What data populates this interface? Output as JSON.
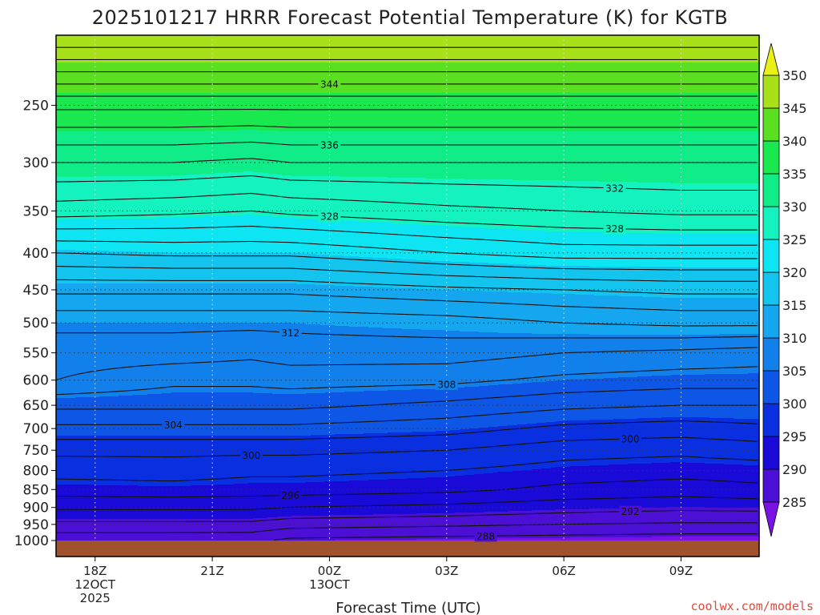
{
  "chart_data": {
    "type": "heatmap",
    "title": "2025101217 HRRR Forecast Potential Temperature (K) for KGTB",
    "xlabel": "Forecast Time (UTC)",
    "ylabel": "",
    "credit": "coolwx.com/models",
    "x_ticks": [
      {
        "hour": 0,
        "lines": [
          "18Z",
          "12OCT",
          "2025"
        ]
      },
      {
        "hour": 3,
        "lines": [
          "21Z"
        ]
      },
      {
        "hour": 6,
        "lines": [
          "00Z",
          "13OCT"
        ]
      },
      {
        "hour": 9,
        "lines": [
          "03Z"
        ]
      },
      {
        "hour": 12,
        "lines": [
          "06Z"
        ]
      },
      {
        "hour": 15,
        "lines": [
          "09Z"
        ]
      }
    ],
    "x_range_hours": [
      -1,
      17
    ],
    "y_range_hpa": [
      1000,
      200
    ],
    "y_ticks": [
      250,
      300,
      350,
      400,
      450,
      500,
      550,
      600,
      650,
      700,
      750,
      800,
      850,
      900,
      950,
      1000
    ],
    "colorbar": {
      "ticks": [
        285,
        290,
        295,
        300,
        305,
        310,
        315,
        320,
        325,
        330,
        335,
        340,
        345,
        350
      ],
      "colors": [
        "#7a12e6",
        "#4b0fd6",
        "#1a0ad8",
        "#0a2fe0",
        "#0d56e6",
        "#1280ea",
        "#14a6ee",
        "#12c4ee",
        "#0de6f2",
        "#14f2c0",
        "#10ec88",
        "#19e84e",
        "#5ae020",
        "#a8e01a",
        "#e8f015"
      ],
      "range": [
        282.5,
        352.5
      ]
    },
    "ground_color": "#a0522d",
    "profiles": [
      {
        "hour": -1,
        "levels": [
          [
            1000,
            288.6
          ],
          [
            925,
            293.0
          ],
          [
            850,
            297.0
          ],
          [
            800,
            298.8
          ],
          [
            750,
            300.5
          ],
          [
            700,
            303.5
          ],
          [
            650,
            306.5
          ],
          [
            600,
            310.0
          ],
          [
            550,
            311.0
          ],
          [
            500,
            312.5
          ],
          [
            450,
            316.5
          ],
          [
            400,
            322.0
          ],
          [
            350,
            329.0
          ],
          [
            300,
            334.0
          ],
          [
            250,
            340.5
          ],
          [
            200,
            352.0
          ]
        ]
      },
      {
        "hour": 2,
        "levels": [
          [
            1000,
            288.6
          ],
          [
            925,
            293.0
          ],
          [
            850,
            297.2
          ],
          [
            800,
            299.0
          ],
          [
            750,
            300.5
          ],
          [
            700,
            303.5
          ],
          [
            650,
            306.5
          ],
          [
            600,
            308.5
          ],
          [
            550,
            311.0
          ],
          [
            500,
            312.5
          ],
          [
            450,
            316.5
          ],
          [
            400,
            322.5
          ],
          [
            350,
            328.5
          ],
          [
            300,
            334.0
          ],
          [
            250,
            340.5
          ],
          [
            200,
            352.0
          ]
        ]
      },
      {
        "hour": 4,
        "levels": [
          [
            1000,
            288.5
          ],
          [
            925,
            293.0
          ],
          [
            850,
            297.0
          ],
          [
            800,
            298.5
          ],
          [
            750,
            300.5
          ],
          [
            700,
            303.5
          ],
          [
            650,
            306.5
          ],
          [
            600,
            308.5
          ],
          [
            550,
            310.5
          ],
          [
            500,
            312.5
          ],
          [
            450,
            316.5
          ],
          [
            400,
            322.5
          ],
          [
            350,
            328.0
          ],
          [
            300,
            333.5
          ],
          [
            250,
            340.5
          ],
          [
            200,
            352.0
          ]
        ]
      },
      {
        "hour": 5,
        "levels": [
          [
            1000,
            287.5
          ],
          [
            925,
            292.5
          ],
          [
            850,
            297.0
          ],
          [
            800,
            298.5
          ],
          [
            750,
            300.5
          ],
          [
            700,
            303.5
          ],
          [
            650,
            306.5
          ],
          [
            600,
            308.8
          ],
          [
            550,
            311.0
          ],
          [
            500,
            312.5
          ],
          [
            450,
            316.5
          ],
          [
            400,
            322.5
          ],
          [
            350,
            328.5
          ],
          [
            300,
            334.0
          ],
          [
            250,
            340.5
          ],
          [
            200,
            352.0
          ]
        ]
      },
      {
        "hour": 9,
        "levels": [
          [
            1000,
            287.2
          ],
          [
            925,
            292.0
          ],
          [
            850,
            296.5
          ],
          [
            800,
            298.0
          ],
          [
            750,
            300.0
          ],
          [
            700,
            302.8
          ],
          [
            650,
            305.5
          ],
          [
            600,
            308.5
          ],
          [
            550,
            311.0
          ],
          [
            500,
            313.0
          ],
          [
            450,
            317.5
          ],
          [
            400,
            324.0
          ],
          [
            350,
            329.5
          ],
          [
            300,
            334.0
          ],
          [
            250,
            340.5
          ],
          [
            200,
            352.0
          ]
        ]
      },
      {
        "hour": 12,
        "levels": [
          [
            1000,
            287.0
          ],
          [
            925,
            291.5
          ],
          [
            850,
            295.5
          ],
          [
            800,
            297.2
          ],
          [
            750,
            298.8
          ],
          [
            700,
            301.5
          ],
          [
            650,
            304.5
          ],
          [
            600,
            307.5
          ],
          [
            550,
            310.0
          ],
          [
            500,
            314.0
          ],
          [
            450,
            318.0
          ],
          [
            400,
            325.0
          ],
          [
            350,
            330.0
          ],
          [
            300,
            334.0
          ],
          [
            250,
            340.5
          ],
          [
            200,
            352.0
          ]
        ]
      },
      {
        "hour": 15,
        "levels": [
          [
            1000,
            286.8
          ],
          [
            925,
            291.2
          ],
          [
            850,
            295.0
          ],
          [
            800,
            296.8
          ],
          [
            750,
            298.5
          ],
          [
            700,
            301.0
          ],
          [
            650,
            304.0
          ],
          [
            600,
            307.0
          ],
          [
            550,
            309.5
          ],
          [
            500,
            314.5
          ],
          [
            450,
            318.5
          ],
          [
            400,
            325.0
          ],
          [
            350,
            330.5
          ],
          [
            300,
            334.0
          ],
          [
            250,
            340.5
          ],
          [
            200,
            352.0
          ]
        ]
      },
      {
        "hour": 17,
        "levels": [
          [
            1000,
            286.8
          ],
          [
            925,
            291.2
          ],
          [
            850,
            295.5
          ],
          [
            800,
            297.0
          ],
          [
            750,
            299.0
          ],
          [
            700,
            301.5
          ],
          [
            650,
            304.0
          ],
          [
            600,
            307.0
          ],
          [
            550,
            309.0
          ],
          [
            500,
            314.5
          ],
          [
            450,
            318.5
          ],
          [
            400,
            325.0
          ],
          [
            350,
            330.5
          ],
          [
            300,
            334.0
          ],
          [
            250,
            340.5
          ],
          [
            200,
            352.0
          ]
        ]
      }
    ],
    "contour_levels": [
      288,
      290,
      292,
      294,
      296,
      298,
      300,
      302,
      304,
      306,
      308,
      310,
      312,
      314,
      316,
      318,
      320,
      322,
      324,
      326,
      328,
      330,
      332,
      334,
      336,
      338,
      340,
      342,
      344,
      346,
      348,
      350
    ],
    "contour_labels": [
      {
        "text": "344",
        "hour": 6,
        "theta": 344
      },
      {
        "text": "336",
        "hour": 6,
        "theta": 336
      },
      {
        "text": "332",
        "hour": 13.3,
        "theta": 332
      },
      {
        "text": "328",
        "hour": 13.3,
        "theta": 328
      },
      {
        "text": "328",
        "hour": 6,
        "theta": 328
      },
      {
        "text": "312",
        "hour": 5,
        "theta": 312
      },
      {
        "text": "308",
        "hour": 9,
        "theta": 308
      },
      {
        "text": "304",
        "hour": 2,
        "theta": 304
      },
      {
        "text": "300",
        "hour": 4,
        "theta": 300
      },
      {
        "text": "300",
        "hour": 13.7,
        "theta": 300
      },
      {
        "text": "296",
        "hour": 5,
        "theta": 296
      },
      {
        "text": "292",
        "hour": 13.7,
        "theta": 292
      },
      {
        "text": "288",
        "hour": 10,
        "theta": 288
      }
    ]
  }
}
